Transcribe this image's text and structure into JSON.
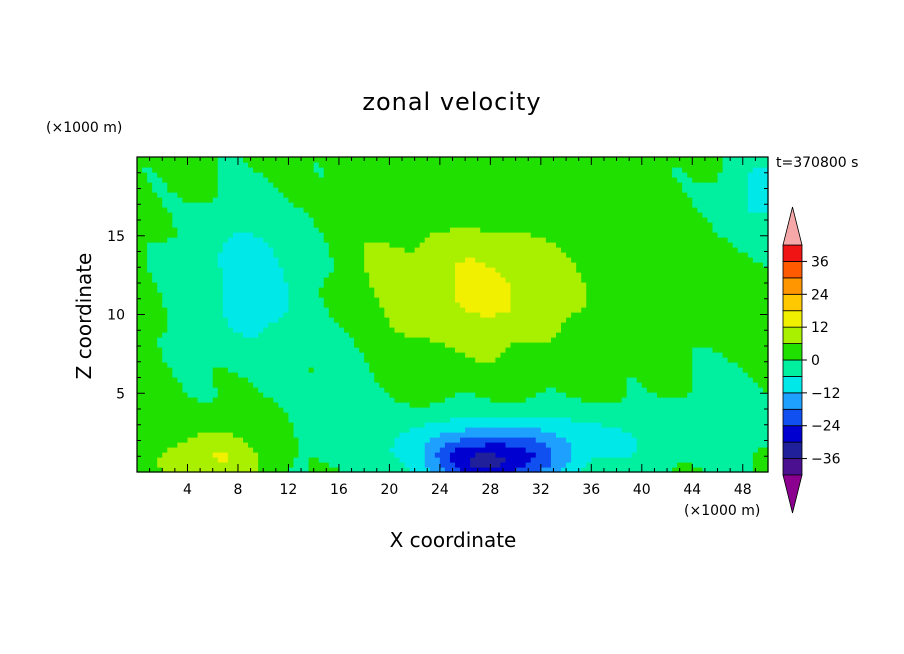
{
  "chart_data": {
    "type": "heatmap",
    "title": "zonal velocity",
    "xlabel": "X coordinate",
    "ylabel": "Z coordinate",
    "x_unit": "(×1000 m)",
    "y_unit": "(×1000 m)",
    "time_label": "t=370800 s",
    "xlim": [
      0,
      50
    ],
    "ylim": [
      0,
      20
    ],
    "x_ticks": [
      4,
      8,
      12,
      16,
      20,
      24,
      28,
      32,
      36,
      40,
      44,
      48
    ],
    "y_ticks": [
      5,
      10,
      15
    ],
    "colorbar": {
      "levels": [
        -42,
        -36,
        -30,
        -24,
        -18,
        -12,
        -6,
        0,
        6,
        12,
        18,
        24,
        30,
        36,
        42
      ],
      "colors": [
        "#4a1090",
        "#20209a",
        "#0000d0",
        "#1050f0",
        "#1ea0ff",
        "#00e8e8",
        "#00f0a0",
        "#20e000",
        "#a8f000",
        "#f0f000",
        "#ffc800",
        "#ff9600",
        "#ff5a00",
        "#f01414"
      ],
      "under_color": "#8c0090",
      "over_color": "#f6a8a8",
      "tick_labels": [
        "36",
        "24",
        "12",
        "0",
        "−12",
        "−24",
        "−36"
      ],
      "tick_values": [
        36,
        24,
        12,
        0,
        -12,
        -24,
        -36
      ]
    },
    "field_features": [
      {
        "x": 9,
        "z": 12,
        "value": -11,
        "sx": 5,
        "sz": 5
      },
      {
        "x": 27,
        "z": 11.5,
        "value": 12,
        "sx": 8,
        "sz": 4
      },
      {
        "x": 28,
        "z": 0.5,
        "value": -26,
        "sx": 5,
        "sz": 1.6
      },
      {
        "x": 30,
        "z": 2.0,
        "value": -13,
        "sx": 12,
        "sz": 2.0
      },
      {
        "x": 6,
        "z": 1.0,
        "value": 11,
        "sx": 4,
        "sz": 1.6
      },
      {
        "x": 16,
        "z": 5.5,
        "value": -4,
        "sx": 2.5,
        "sz": 5
      },
      {
        "x": 49,
        "z": 17.5,
        "value": -9,
        "sx": 3,
        "sz": 3
      },
      {
        "x": 47,
        "z": 4,
        "value": -5,
        "sx": 4,
        "sz": 3
      },
      {
        "x": 18,
        "z": 15,
        "value": 2,
        "sx": 3,
        "sz": 5
      }
    ],
    "background_value": 1.5
  }
}
